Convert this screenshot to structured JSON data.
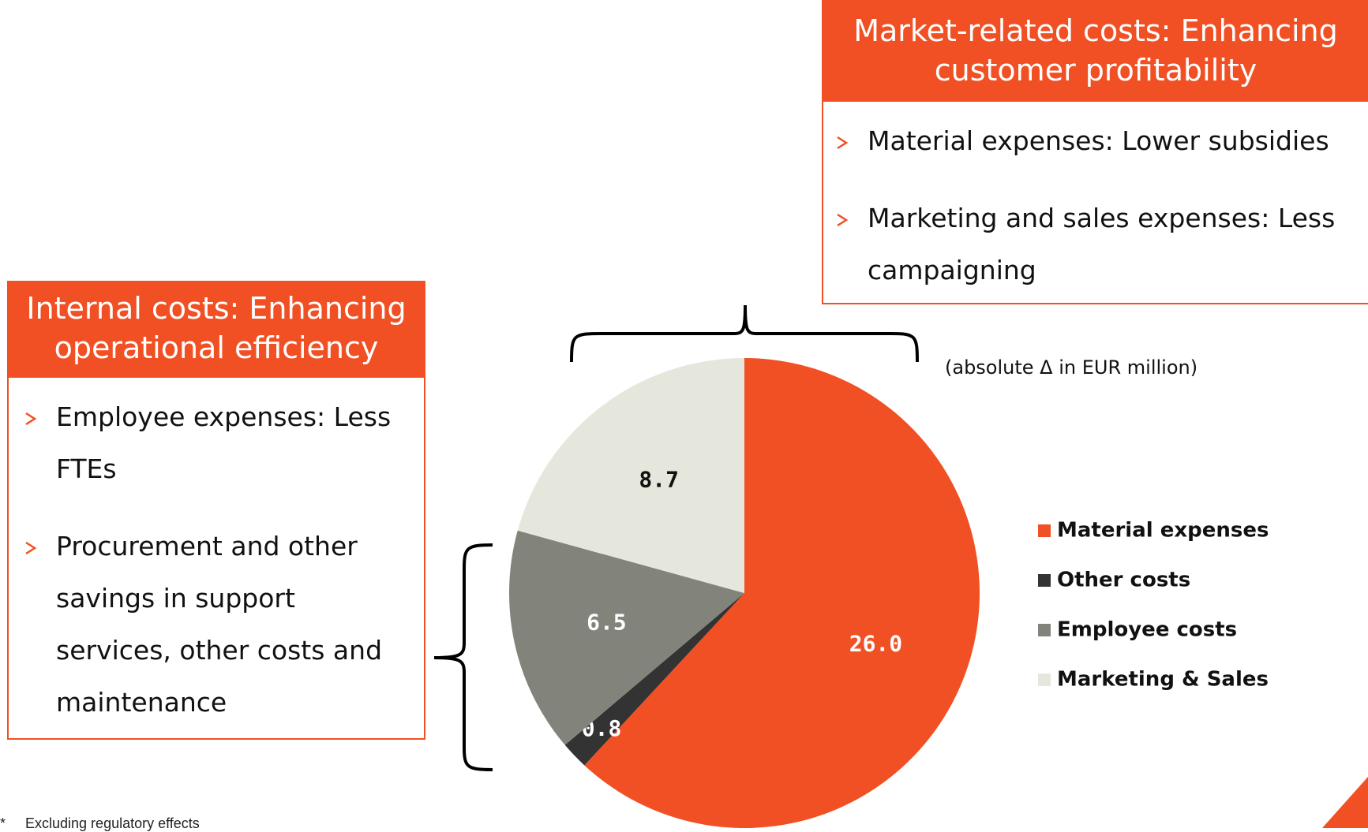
{
  "chart_data": {
    "type": "pie",
    "categories": [
      "Material expenses",
      "Other costs",
      "Employee costs",
      "Marketing & Sales"
    ],
    "values": [
      26.0,
      0.8,
      6.5,
      8.7
    ],
    "value_labels": [
      "26.0",
      "0.8",
      "6.5",
      "8.7"
    ],
    "colors": [
      "#f05023",
      "#333333",
      "#82847c",
      "#e6e7dc"
    ],
    "annotation": "(absolute Δ in EUR million)",
    "legend": "right"
  },
  "panels": [
    {
      "title": "Market-related costs:  Enhancing customer profitability",
      "bullets": [
        "Material expenses: Lower subsidies",
        "Marketing and sales expenses: Less campaigning"
      ]
    },
    {
      "title": "Internal costs: Enhancing operational efficiency",
      "bullets": [
        "Employee expenses: Less FTEs",
        "Procurement and other savings in support services, other costs and maintenance"
      ]
    }
  ],
  "footnote": "*     Excluding regulatory effects"
}
